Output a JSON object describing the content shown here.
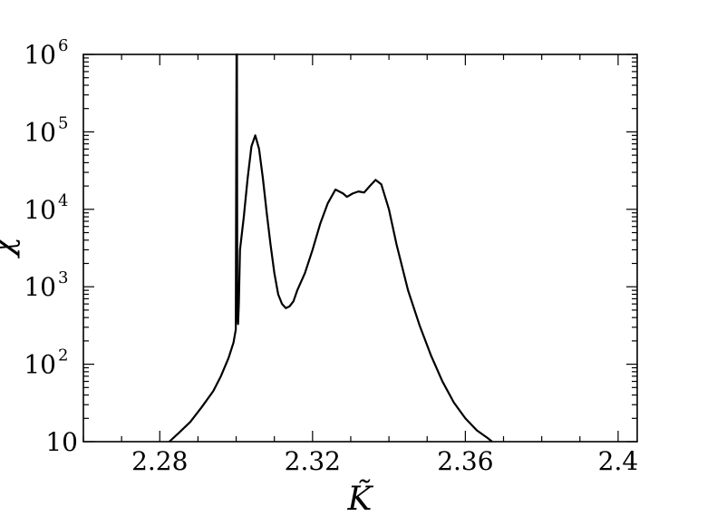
{
  "chart_data": {
    "type": "line",
    "xlabel": "K̃",
    "ylabel": "χ",
    "x_range": [
      2.26,
      2.405
    ],
    "y_scale": "log",
    "y_range": [
      10,
      1000000
    ],
    "grid": false,
    "x_ticks": [
      {
        "value": 2.28,
        "label": "2.28"
      },
      {
        "value": 2.32,
        "label": "2.32"
      },
      {
        "value": 2.36,
        "label": "2.36"
      },
      {
        "value": 2.4,
        "label": "2.4"
      }
    ],
    "y_ticks": [
      {
        "value": 10,
        "base": "10",
        "exp": ""
      },
      {
        "value": 100,
        "base": "10",
        "exp": "2"
      },
      {
        "value": 1000,
        "base": "10",
        "exp": "3"
      },
      {
        "value": 10000,
        "base": "10",
        "exp": "4"
      },
      {
        "value": 100000,
        "base": "10",
        "exp": "5"
      },
      {
        "value": 1000000,
        "base": "10",
        "exp": "6"
      }
    ],
    "series": [
      {
        "color": "#000000",
        "points": [
          [
            2.2825,
            10
          ],
          [
            2.285,
            13
          ],
          [
            2.288,
            18
          ],
          [
            2.291,
            28
          ],
          [
            2.294,
            45
          ],
          [
            2.296,
            70
          ],
          [
            2.298,
            120
          ],
          [
            2.2993,
            190
          ],
          [
            2.2999,
            280
          ],
          [
            2.3001,
            1000000
          ],
          [
            2.3002,
            1000000
          ],
          [
            2.3003,
            400
          ],
          [
            2.3005,
            330
          ],
          [
            2.3007,
            600
          ],
          [
            2.301,
            3000
          ],
          [
            2.302,
            8000
          ],
          [
            2.303,
            25000
          ],
          [
            2.304,
            65000
          ],
          [
            2.305,
            90000
          ],
          [
            2.306,
            60000
          ],
          [
            2.307,
            25000
          ],
          [
            2.308,
            9000
          ],
          [
            2.309,
            3500
          ],
          [
            2.31,
            1500
          ],
          [
            2.311,
            800
          ],
          [
            2.312,
            600
          ],
          [
            2.313,
            530
          ],
          [
            2.314,
            560
          ],
          [
            2.315,
            650
          ],
          [
            2.316,
            900
          ],
          [
            2.318,
            1500
          ],
          [
            2.32,
            3000
          ],
          [
            2.322,
            6500
          ],
          [
            2.324,
            12000
          ],
          [
            2.326,
            18000
          ],
          [
            2.328,
            16000
          ],
          [
            2.329,
            14500
          ],
          [
            2.3305,
            16000
          ],
          [
            2.332,
            17000
          ],
          [
            2.3335,
            16500
          ],
          [
            2.335,
            20000
          ],
          [
            2.3365,
            24000
          ],
          [
            2.338,
            21000
          ],
          [
            2.34,
            10000
          ],
          [
            2.342,
            3500
          ],
          [
            2.345,
            900
          ],
          [
            2.348,
            320
          ],
          [
            2.351,
            130
          ],
          [
            2.354,
            60
          ],
          [
            2.357,
            32
          ],
          [
            2.36,
            20
          ],
          [
            2.363,
            14
          ],
          [
            2.366,
            11
          ],
          [
            2.367,
            10
          ]
        ]
      }
    ]
  }
}
